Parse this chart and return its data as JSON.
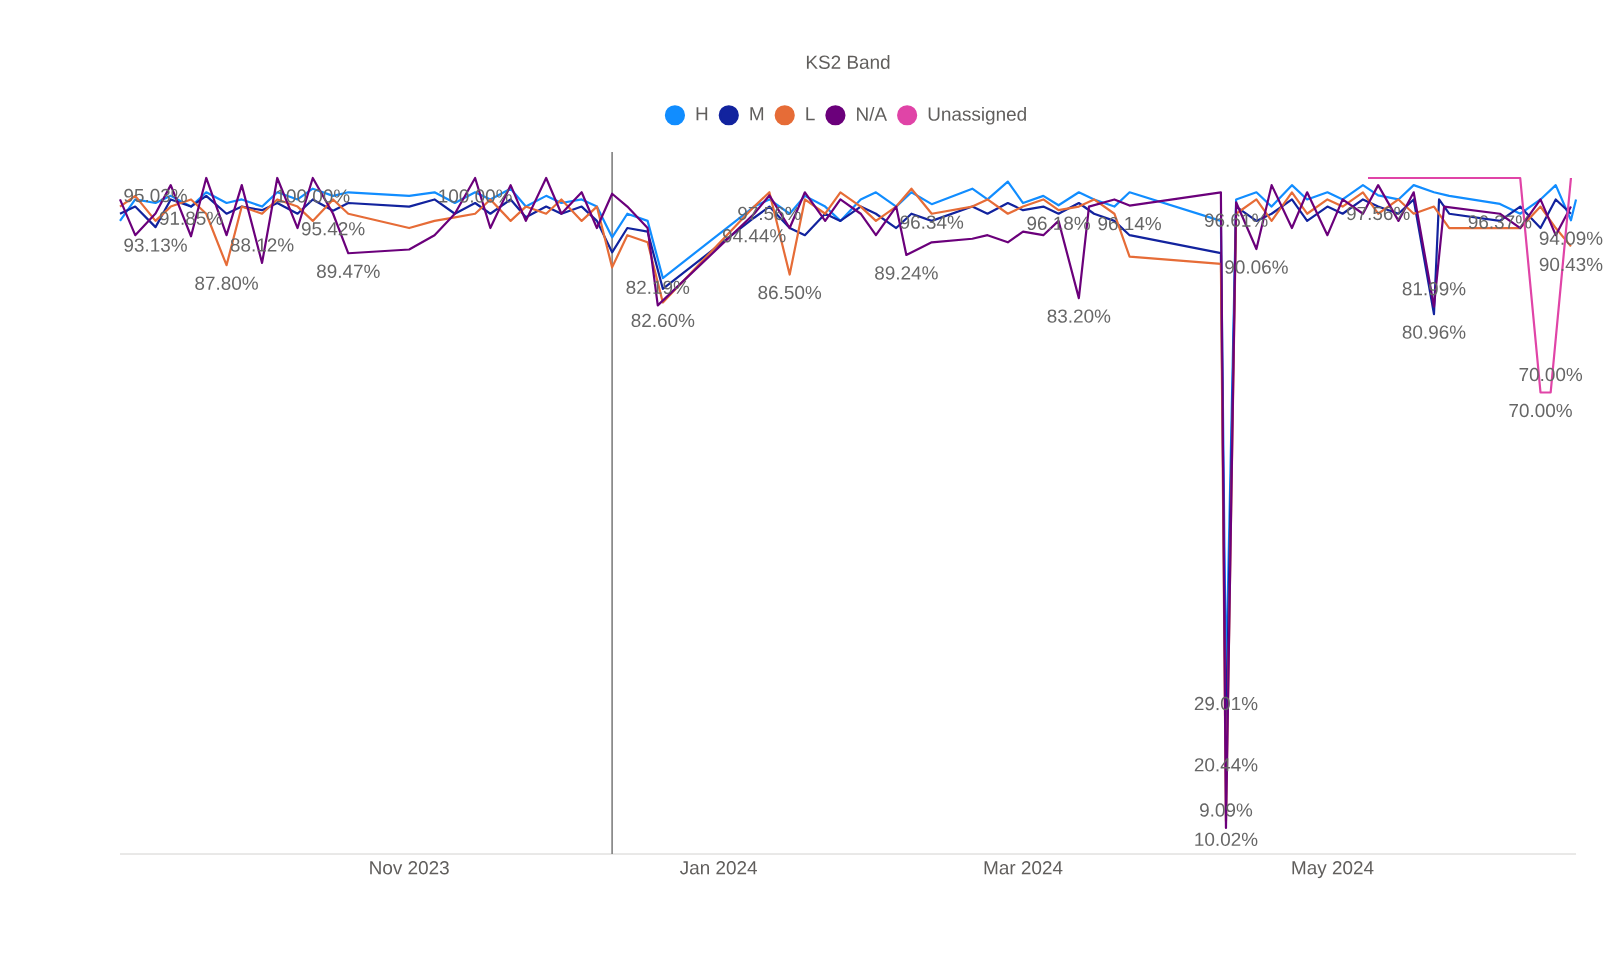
{
  "chart_data": {
    "type": "line",
    "legend_title": "KS2 Band",
    "legend": "top",
    "xticks": [
      {
        "value": "2023-11-01",
        "label": "Nov 2023"
      },
      {
        "value": "2024-01-01",
        "label": "Jan 2024"
      },
      {
        "value": "2024-03-01",
        "label": "Mar 2024"
      },
      {
        "value": "2024-05-01",
        "label": "May 2024"
      }
    ],
    "xlim": [
      "2023-09-05",
      "2024-06-18"
    ],
    "tick_labels": "x",
    "ref_lines": [
      {
        "axis": "x",
        "value": "2023-12-11",
        "color": "#7f7f7f"
      }
    ],
    "series": [
      {
        "name": "H",
        "color": "#118dff",
        "x": [
          "2023-09-05",
          "2023-09-08",
          "2023-09-12",
          "2023-09-15",
          "2023-09-19",
          "2023-09-22",
          "2023-09-26",
          "2023-09-29",
          "2023-10-03",
          "2023-10-06",
          "2023-10-10",
          "2023-10-13",
          "2023-10-17",
          "2023-10-20",
          "2023-11-01",
          "2023-11-06",
          "2023-11-10",
          "2023-11-14",
          "2023-11-17",
          "2023-11-21",
          "2023-11-24",
          "2023-11-28",
          "2023-12-01",
          "2023-12-05",
          "2023-12-08",
          "2023-12-11",
          "2023-12-14",
          "2023-12-18",
          "2023-12-21",
          "2024-01-08",
          "2024-01-11",
          "2024-01-15",
          "2024-01-18",
          "2024-01-22",
          "2024-01-25",
          "2024-01-29",
          "2024-02-01",
          "2024-02-05",
          "2024-02-08",
          "2024-02-12",
          "2024-02-20",
          "2024-02-23",
          "2024-02-27",
          "2024-03-01",
          "2024-03-05",
          "2024-03-08",
          "2024-03-12",
          "2024-03-15",
          "2024-03-19",
          "2024-03-22",
          "2024-04-09",
          "2024-04-10",
          "2024-04-12",
          "2024-04-16",
          "2024-04-19",
          "2024-04-23",
          "2024-04-26",
          "2024-04-30",
          "2024-05-03",
          "2024-05-07",
          "2024-05-10",
          "2024-05-14",
          "2024-05-17",
          "2024-05-21",
          "2024-05-24",
          "2024-06-03",
          "2024-06-07",
          "2024-06-11",
          "2024-06-14",
          "2024-06-17",
          "2024-06-18"
        ],
        "value_labels": [
          null,
          null,
          null,
          null,
          null,
          null,
          null,
          null,
          null,
          null,
          null,
          null,
          null,
          null,
          null,
          null,
          null,
          null,
          null,
          null,
          null,
          null,
          null,
          null,
          null,
          null,
          null,
          null,
          null,
          null,
          null,
          null,
          null,
          null,
          null,
          null,
          null,
          null,
          null,
          "96.34%",
          null,
          null,
          null,
          null,
          null,
          "96.18%",
          null,
          null,
          null,
          null,
          null,
          "29.01%",
          null,
          null,
          null,
          null,
          null,
          null,
          null,
          null,
          "97.56%",
          null,
          null,
          null,
          null,
          "96.37%",
          null,
          null,
          null,
          "94.09%",
          null
        ],
        "values": [
          94,
          97,
          96.5,
          97.5,
          96,
          98,
          96.5,
          97,
          96,
          98,
          97,
          98.5,
          97.5,
          98,
          97.5,
          98,
          96.5,
          98,
          97,
          98.5,
          96,
          97.5,
          96.5,
          97,
          96,
          91.7,
          95,
          94,
          86,
          96,
          97,
          95,
          97.5,
          96,
          94,
          97,
          98,
          96,
          98,
          96.34,
          98.5,
          97,
          99.5,
          96.5,
          97.5,
          96.18,
          98,
          97,
          96,
          98,
          94,
          29.01,
          97,
          98,
          96,
          99,
          97,
          98,
          97,
          99,
          97.56,
          97,
          99,
          98,
          97.5,
          96.37,
          95,
          97,
          99,
          94.09,
          97
        ]
      },
      {
        "name": "M",
        "color": "#12239e",
        "x": [
          "2023-09-05",
          "2023-09-08",
          "2023-09-12",
          "2023-09-15",
          "2023-09-19",
          "2023-09-22",
          "2023-09-26",
          "2023-09-29",
          "2023-10-03",
          "2023-10-06",
          "2023-10-10",
          "2023-10-13",
          "2023-10-17",
          "2023-10-20",
          "2023-11-01",
          "2023-11-06",
          "2023-11-10",
          "2023-11-14",
          "2023-11-17",
          "2023-11-21",
          "2023-11-24",
          "2023-11-28",
          "2023-12-01",
          "2023-12-05",
          "2023-12-08",
          "2023-12-11",
          "2023-12-14",
          "2023-12-18",
          "2023-12-21",
          "2024-01-08",
          "2024-01-11",
          "2024-01-15",
          "2024-01-18",
          "2024-01-22",
          "2024-01-25",
          "2024-01-29",
          "2024-02-01",
          "2024-02-05",
          "2024-02-08",
          "2024-02-12",
          "2024-02-20",
          "2024-02-23",
          "2024-02-27",
          "2024-03-01",
          "2024-03-05",
          "2024-03-08",
          "2024-03-12",
          "2024-03-15",
          "2024-03-19",
          "2024-03-22",
          "2024-04-09",
          "2024-04-10",
          "2024-04-12",
          "2024-04-16",
          "2024-04-19",
          "2024-04-23",
          "2024-04-26",
          "2024-04-30",
          "2024-05-03",
          "2024-05-07",
          "2024-05-10",
          "2024-05-14",
          "2024-05-17",
          "2024-05-21",
          "2024-05-22",
          "2024-05-24",
          "2024-06-03",
          "2024-06-07",
          "2024-06-11",
          "2024-06-14",
          "2024-06-17"
        ],
        "value_labels": [
          null,
          null,
          "93.13%",
          null,
          null,
          null,
          null,
          null,
          null,
          null,
          null,
          null,
          "95.42%",
          null,
          null,
          null,
          null,
          null,
          null,
          null,
          null,
          null,
          null,
          null,
          null,
          null,
          null,
          null,
          null,
          "94.44%",
          null,
          null,
          null,
          null,
          null,
          null,
          null,
          null,
          null,
          null,
          null,
          null,
          null,
          null,
          null,
          null,
          null,
          null,
          null,
          null,
          null,
          "20.44%",
          null,
          null,
          null,
          null,
          null,
          null,
          null,
          null,
          null,
          null,
          null,
          "80.96%",
          null,
          null,
          null,
          null,
          null,
          null,
          null
        ],
        "values": [
          95,
          96,
          93.13,
          97,
          96,
          97.5,
          95,
          96,
          95.5,
          96.5,
          95,
          97,
          95.42,
          96.5,
          96,
          97,
          95,
          96.5,
          95,
          97,
          94.5,
          96,
          95,
          96,
          94,
          89.6,
          93,
          92.5,
          84.5,
          94.44,
          96,
          93,
          92,
          95,
          94,
          96,
          95,
          93,
          95,
          94,
          96,
          95,
          96.5,
          95.5,
          96,
          95,
          96.5,
          95,
          94,
          92,
          89.5,
          20.44,
          96,
          94,
          95,
          97,
          94,
          96,
          95,
          97,
          96,
          95,
          97,
          80.96,
          97,
          95,
          94,
          96,
          93,
          97,
          95
        ]
      },
      {
        "name": "L",
        "color": "#e66c37",
        "x": [
          "2023-09-05",
          "2023-09-08",
          "2023-09-12",
          "2023-09-15",
          "2023-09-19",
          "2023-09-22",
          "2023-09-26",
          "2023-09-29",
          "2023-10-03",
          "2023-10-06",
          "2023-10-10",
          "2023-10-13",
          "2023-10-17",
          "2023-10-20",
          "2023-11-01",
          "2023-11-06",
          "2023-11-10",
          "2023-11-14",
          "2023-11-17",
          "2023-11-21",
          "2023-11-24",
          "2023-11-28",
          "2023-12-01",
          "2023-12-05",
          "2023-12-08",
          "2023-12-11",
          "2023-12-14",
          "2023-12-18",
          "2023-12-21",
          "2024-01-08",
          "2024-01-11",
          "2024-01-15",
          "2024-01-18",
          "2024-01-22",
          "2024-01-25",
          "2024-01-29",
          "2024-02-01",
          "2024-02-05",
          "2024-02-08",
          "2024-02-12",
          "2024-02-20",
          "2024-02-23",
          "2024-02-27",
          "2024-03-01",
          "2024-03-05",
          "2024-03-08",
          "2024-03-12",
          "2024-03-15",
          "2024-03-19",
          "2024-03-22",
          "2024-04-09",
          "2024-04-10",
          "2024-04-12",
          "2024-04-16",
          "2024-04-19",
          "2024-04-23",
          "2024-04-26",
          "2024-04-30",
          "2024-05-03",
          "2024-05-07",
          "2024-05-10",
          "2024-05-14",
          "2024-05-17",
          "2024-05-21",
          "2024-05-24",
          "2024-06-03",
          "2024-06-07",
          "2024-06-11",
          "2024-06-14",
          "2024-06-17"
        ],
        "value_labels": [
          null,
          null,
          null,
          null,
          null,
          null,
          "87.80%",
          null,
          null,
          null,
          null,
          null,
          null,
          null,
          null,
          null,
          null,
          null,
          null,
          null,
          null,
          null,
          null,
          null,
          null,
          null,
          null,
          null,
          "82.60%",
          null,
          null,
          "86.50%",
          null,
          null,
          null,
          null,
          null,
          null,
          null,
          null,
          null,
          null,
          null,
          null,
          null,
          null,
          null,
          null,
          null,
          null,
          null,
          "10.02%",
          null,
          null,
          null,
          null,
          null,
          null,
          null,
          null,
          null,
          null,
          null,
          null,
          null,
          null,
          null,
          null,
          null,
          "90.43%"
        ],
        "values": [
          96,
          97.5,
          94,
          96,
          97,
          95,
          87.8,
          96,
          95,
          97,
          96,
          94,
          97,
          95,
          93,
          94,
          94.5,
          95,
          97,
          94,
          96,
          95,
          97,
          94,
          96,
          87.5,
          92,
          91,
          82.6,
          96,
          98,
          86.5,
          97,
          95,
          98,
          96,
          94,
          96,
          98.5,
          95,
          96,
          97,
          95,
          96,
          97,
          95.5,
          96,
          97,
          95,
          89,
          88,
          10.02,
          95,
          97,
          94,
          98,
          95,
          97,
          96,
          98,
          95,
          97,
          95,
          96,
          93,
          93,
          93,
          96,
          93,
          90.43
        ]
      },
      {
        "name": "N/A",
        "color": "#6b007b",
        "x": [
          "2023-09-05",
          "2023-09-08",
          "2023-09-12",
          "2023-09-15",
          "2023-09-19",
          "2023-09-22",
          "2023-09-26",
          "2023-09-29",
          "2023-10-03",
          "2023-10-06",
          "2023-10-10",
          "2023-10-13",
          "2023-10-17",
          "2023-10-20",
          "2023-11-01",
          "2023-11-06",
          "2023-11-10",
          "2023-11-14",
          "2023-11-17",
          "2023-11-21",
          "2023-11-24",
          "2023-11-28",
          "2023-12-01",
          "2023-12-05",
          "2023-12-08",
          "2023-12-11",
          "2023-12-14",
          "2023-12-18",
          "2023-12-20",
          "2024-01-08",
          "2024-01-11",
          "2024-01-15",
          "2024-01-18",
          "2024-01-22",
          "2024-01-25",
          "2024-01-29",
          "2024-02-01",
          "2024-02-05",
          "2024-02-07",
          "2024-02-12",
          "2024-02-20",
          "2024-02-23",
          "2024-02-27",
          "2024-03-01",
          "2024-03-05",
          "2024-03-08",
          "2024-03-12",
          "2024-03-14",
          "2024-03-19",
          "2024-03-22",
          "2024-04-09",
          "2024-04-10",
          "2024-04-12",
          "2024-04-16",
          "2024-04-19",
          "2024-04-23",
          "2024-04-26",
          "2024-04-30",
          "2024-05-03",
          "2024-05-07",
          "2024-05-10",
          "2024-05-14",
          "2024-05-17",
          "2024-05-21",
          "2024-05-23",
          "2024-06-03",
          "2024-06-07",
          "2024-06-11",
          "2024-06-14",
          "2024-06-17"
        ],
        "value_labels": [
          null,
          null,
          "95.03%",
          null,
          "91.85%",
          null,
          null,
          null,
          "88.12%",
          null,
          null,
          "100.00%",
          null,
          "89.47%",
          null,
          null,
          null,
          "100.00%",
          null,
          null,
          null,
          null,
          null,
          null,
          null,
          null,
          null,
          null,
          "82.19%",
          null,
          "97.56%",
          null,
          null,
          null,
          null,
          null,
          null,
          null,
          "89.24%",
          null,
          null,
          null,
          null,
          null,
          null,
          null,
          "83.20%",
          null,
          null,
          "96.14%",
          null,
          "9.09%",
          "96.61%",
          "90.06%",
          null,
          null,
          null,
          null,
          null,
          null,
          null,
          null,
          null,
          "81.99%",
          null,
          null,
          null,
          null,
          null,
          null
        ],
        "values": [
          97,
          92,
          95.03,
          99,
          91.85,
          100,
          92,
          99,
          88.12,
          100,
          93,
          100,
          95,
          89.47,
          90,
          92,
          95,
          100,
          93,
          99,
          94,
          100,
          95,
          98,
          93,
          97.8,
          96,
          93,
          82.19,
          95,
          97.56,
          93,
          98,
          94,
          97,
          95,
          92,
          96,
          89.24,
          91,
          91.5,
          92,
          91,
          92.5,
          92,
          94,
          83.2,
          96,
          97,
          96.14,
          98,
          9.09,
          96.61,
          90.06,
          99,
          93,
          98,
          92,
          97,
          95,
          99,
          94,
          98,
          81.99,
          96,
          95,
          93,
          97,
          92,
          96
        ]
      },
      {
        "name": "Unassigned",
        "color": "#e044a7",
        "x": [
          "2024-05-08",
          "2024-06-07",
          "2024-06-11",
          "2024-06-13",
          "2024-06-17"
        ],
        "value_labels": [
          null,
          null,
          "70.00%",
          "70.00%",
          null
        ],
        "values": [
          100,
          100,
          70,
          70,
          100
        ]
      }
    ]
  }
}
